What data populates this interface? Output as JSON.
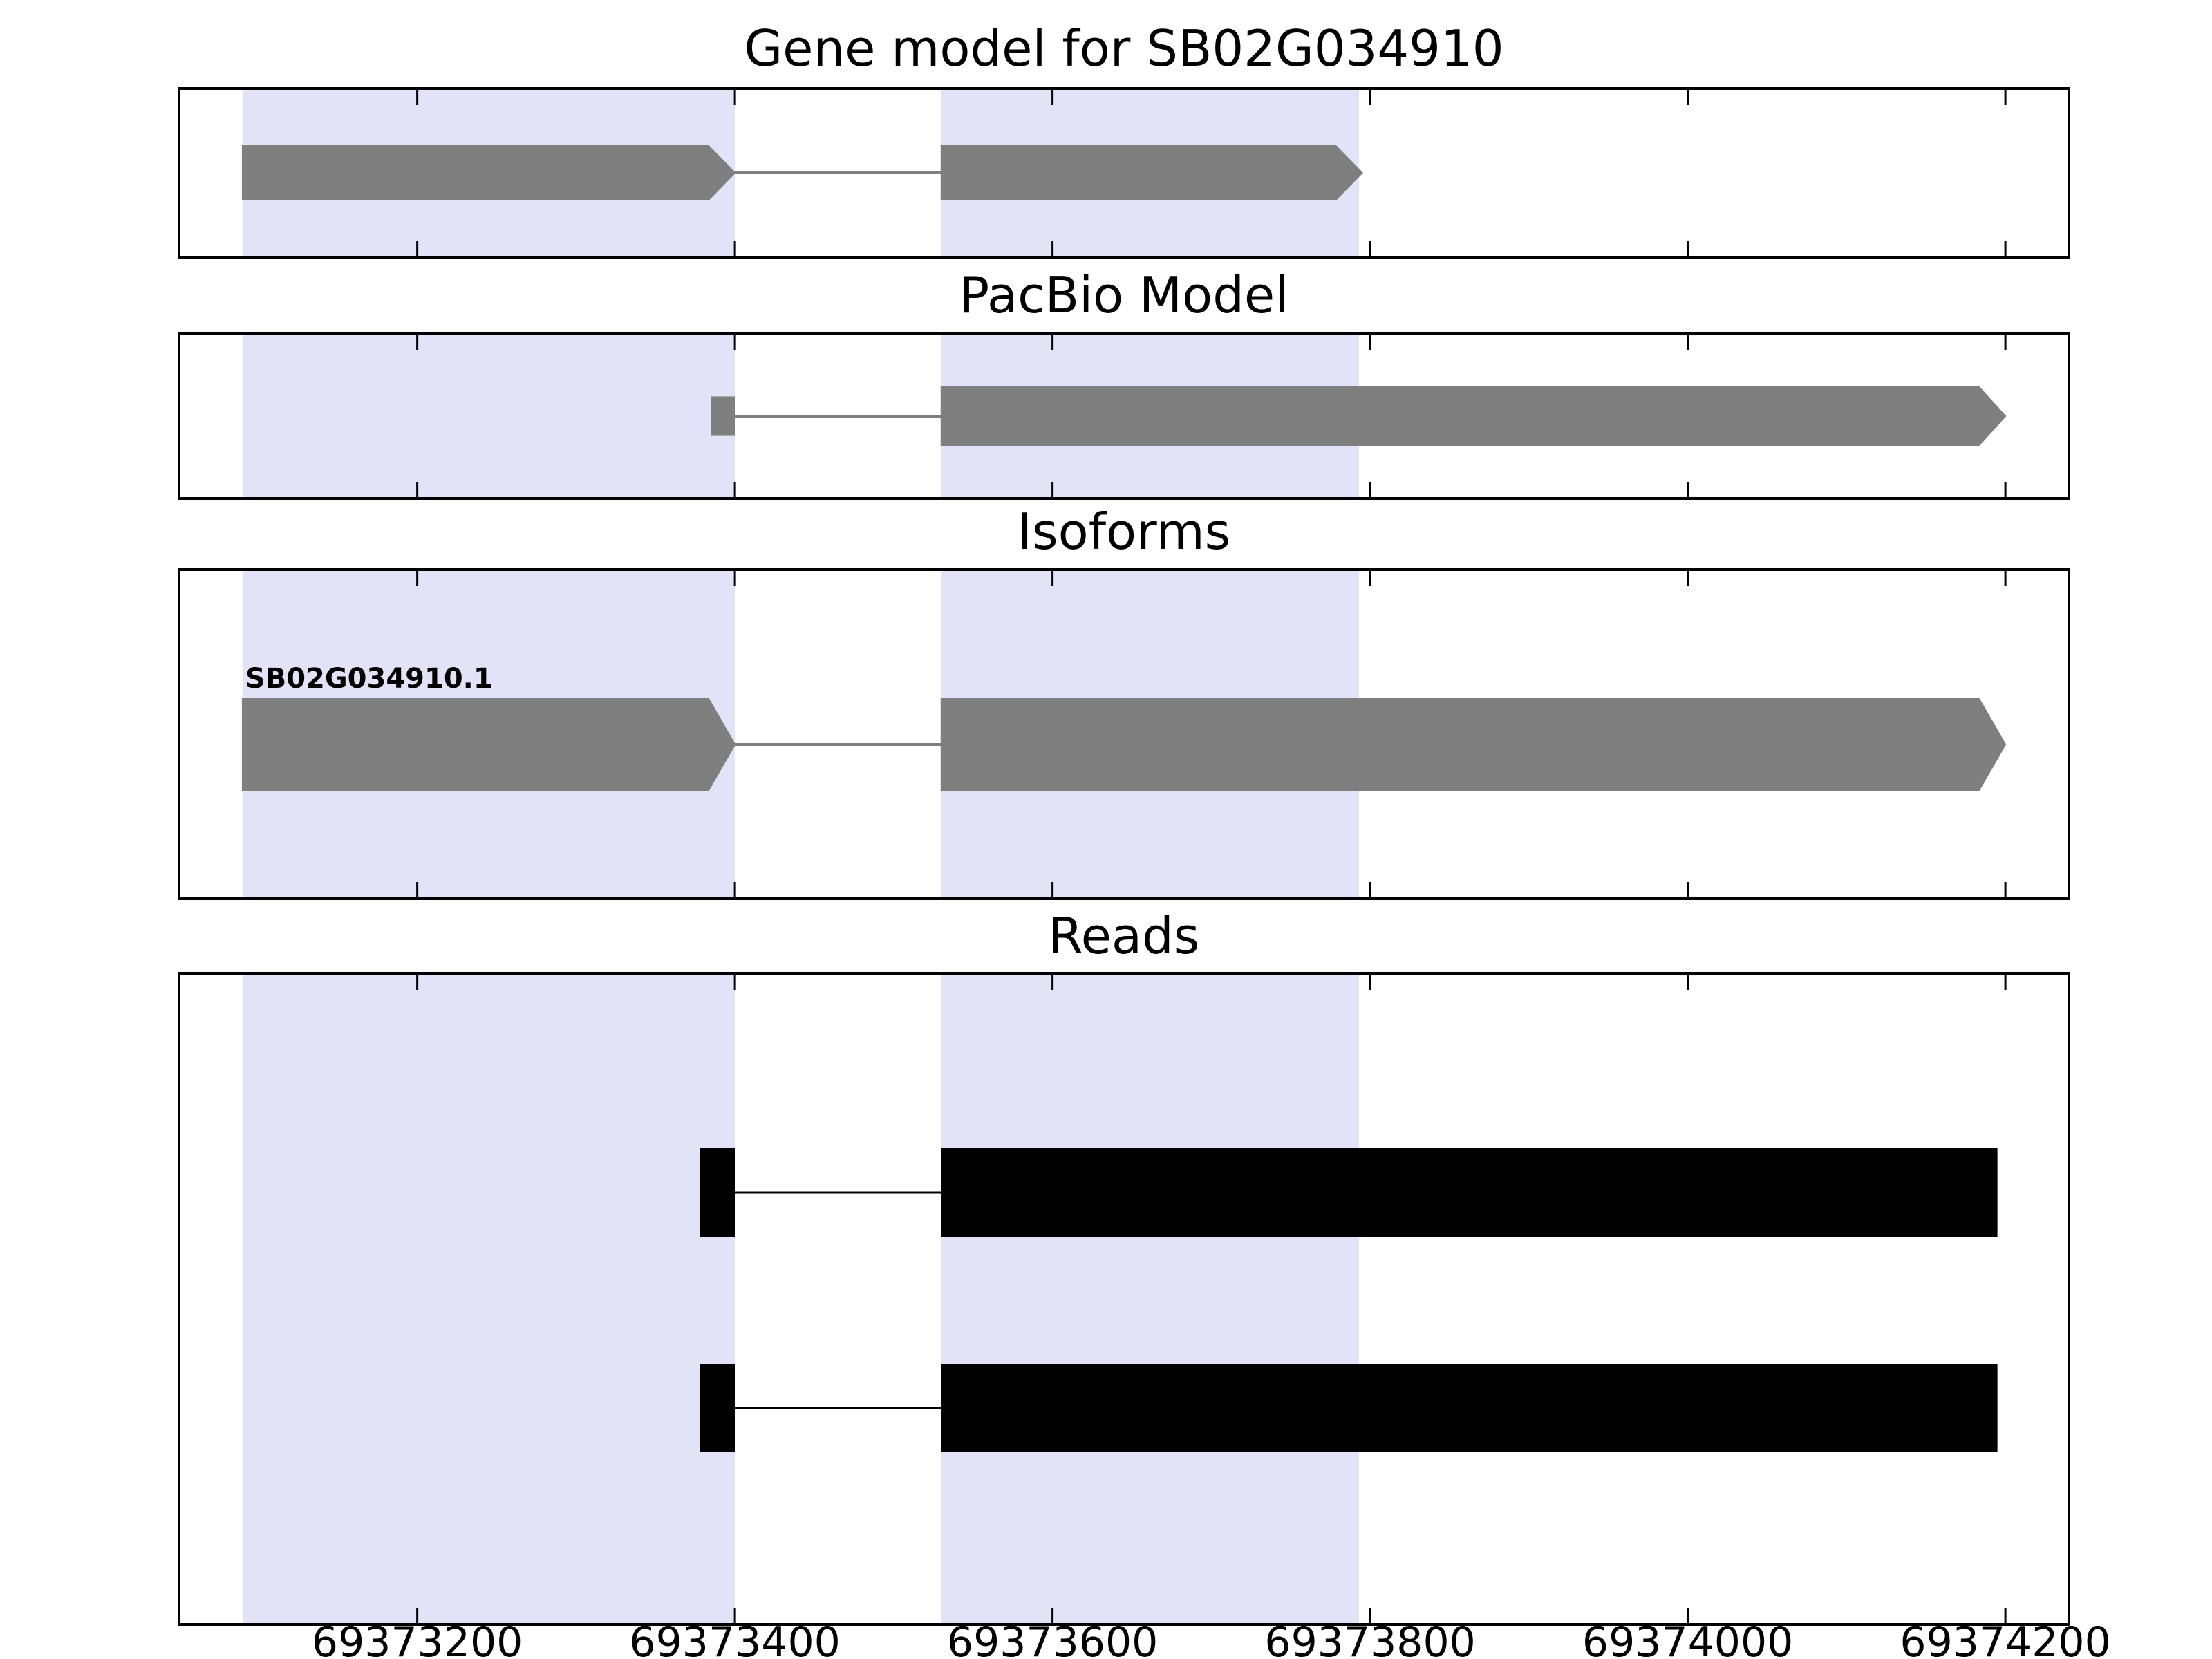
{
  "figure": {
    "background": "#ffffff"
  },
  "panels": [
    {
      "id": "gene-model",
      "title": "Gene model for SB02G034910"
    },
    {
      "id": "pacbio-model",
      "title": "PacBio Model"
    },
    {
      "id": "isoforms",
      "title": "Isoforms"
    },
    {
      "id": "reads",
      "title": "Reads"
    }
  ],
  "chart_data": {
    "type": "gene-structure-tracks",
    "title": "Gene model for SB02G034910",
    "xlim": [
      69373050,
      69374240
    ],
    "x_ticks": [
      69373200,
      69373400,
      69373600,
      69373800,
      69374000,
      69374200
    ],
    "x_tick_labels": [
      "69373200",
      "69373400",
      "69373600",
      "69373800",
      "69374000",
      "69374200"
    ],
    "grid": false,
    "highlight_color": "#e3e3f8",
    "feature_color": "#7f7f7f",
    "read_color": "#000000",
    "highlight_regions": [
      {
        "start": 69373090,
        "end": 69373400
      },
      {
        "start": 69373530,
        "end": 69373793
      }
    ],
    "tracks": [
      {
        "name": "gene_model",
        "title": "Gene model for SB02G034910",
        "rows": [
          {
            "exons": [
              {
                "start": 69373090,
                "end": 69373400,
                "arrow": true
              },
              {
                "start": 69373530,
                "end": 69373795,
                "arrow": true
              }
            ]
          }
        ]
      },
      {
        "name": "pacbio_model",
        "title": "PacBio Model",
        "rows": [
          {
            "exons": [
              {
                "start": 69373385,
                "end": 69373400,
                "arrow": false,
                "small": true
              },
              {
                "start": 69373530,
                "end": 69374200,
                "arrow": true
              }
            ]
          }
        ]
      },
      {
        "name": "isoforms",
        "title": "Isoforms",
        "rows": [
          {
            "label": "SB02G034910.1",
            "exons": [
              {
                "start": 69373090,
                "end": 69373400,
                "arrow": true
              },
              {
                "start": 69373530,
                "end": 69374200,
                "arrow": true
              }
            ]
          }
        ]
      },
      {
        "name": "reads",
        "title": "Reads",
        "rows": [
          {
            "color": "#000000",
            "exons": [
              {
                "start": 69373378,
                "end": 69373400
              },
              {
                "start": 69373530,
                "end": 69374195
              }
            ]
          },
          {
            "color": "#000000",
            "exons": [
              {
                "start": 69373378,
                "end": 69373400
              },
              {
                "start": 69373530,
                "end": 69374195
              }
            ]
          }
        ]
      }
    ]
  }
}
